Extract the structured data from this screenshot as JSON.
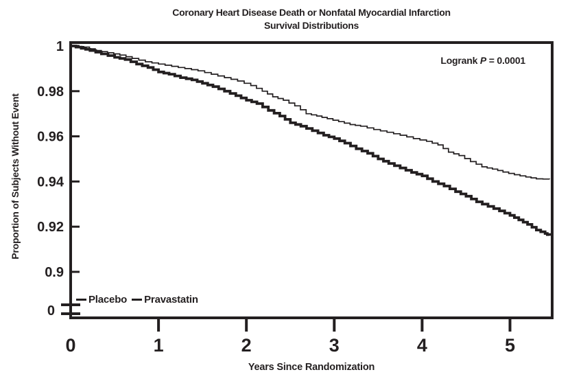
{
  "colors": {
    "ink": "#231f20",
    "background": "#ffffff"
  },
  "chart_data": {
    "type": "line",
    "subtype": "kaplan-meier-step-survival",
    "title": "Coronary Heart Disease Death or Nonfatal Myocardial Infarction Survival Distributions",
    "title_lines": [
      "Coronary Heart Disease Death or Nonfatal Myocardial Infarction",
      "Survival Distributions"
    ],
    "annotation": "Logrank P = 0.0001",
    "annotation_parts": {
      "prefix": "Logrank ",
      "p": "P",
      "rest": " = 0.0001"
    },
    "xlabel": "Years Since Randomization",
    "ylabel": "Proportion of Subjects Without Event",
    "x_ticks": [
      0,
      1,
      2,
      3,
      4,
      5
    ],
    "x_tick_labels": [
      "0",
      "1",
      "2",
      "3",
      "4",
      "5"
    ],
    "xlim": [
      0,
      5.48
    ],
    "y_ticks": [
      1,
      0.98,
      0.96,
      0.94,
      0.92,
      0.9
    ],
    "y_tick_labels": [
      "1",
      "0.98",
      "0.96",
      "0.94",
      "0.92",
      "0.9"
    ],
    "y_break_label": "0",
    "y_axis_break": true,
    "ylim_displayed": [
      0.9,
      1.0
    ],
    "grid": false,
    "legend": [
      "Placebo",
      "Pravastatin"
    ],
    "legend_position": "inside-bottom-left",
    "series": [
      {
        "name": "Pravastatin",
        "weight": "thin",
        "points": [
          [
            0,
            1
          ],
          [
            0.15,
            0.9995
          ],
          [
            0.28,
            0.998
          ],
          [
            0.42,
            0.997
          ],
          [
            0.56,
            0.996
          ],
          [
            0.7,
            0.9945
          ],
          [
            0.85,
            0.993
          ],
          [
            1.0,
            0.992
          ],
          [
            1.15,
            0.991
          ],
          [
            1.3,
            0.99
          ],
          [
            1.45,
            0.989
          ],
          [
            1.6,
            0.9875
          ],
          [
            1.75,
            0.986
          ],
          [
            1.9,
            0.9845
          ],
          [
            2.05,
            0.9825
          ],
          [
            2.18,
            0.98
          ],
          [
            2.3,
            0.9775
          ],
          [
            2.42,
            0.976
          ],
          [
            2.55,
            0.9735
          ],
          [
            2.68,
            0.97
          ],
          [
            2.8,
            0.969
          ],
          [
            2.92,
            0.9678
          ],
          [
            3.05,
            0.9665
          ],
          [
            3.18,
            0.9652
          ],
          [
            3.3,
            0.9645
          ],
          [
            3.45,
            0.963
          ],
          [
            3.6,
            0.9618
          ],
          [
            3.75,
            0.9605
          ],
          [
            3.9,
            0.959
          ],
          [
            4.05,
            0.9578
          ],
          [
            4.18,
            0.9562
          ],
          [
            4.3,
            0.953
          ],
          [
            4.42,
            0.9515
          ],
          [
            4.55,
            0.9488
          ],
          [
            4.68,
            0.9465
          ],
          [
            4.8,
            0.9455
          ],
          [
            4.92,
            0.9442
          ],
          [
            5.05,
            0.943
          ],
          [
            5.18,
            0.942
          ],
          [
            5.3,
            0.9412
          ],
          [
            5.45,
            0.941
          ]
        ]
      },
      {
        "name": "Placebo",
        "weight": "thick",
        "points": [
          [
            0,
            1
          ],
          [
            0.12,
            0.999
          ],
          [
            0.22,
            0.998
          ],
          [
            0.35,
            0.9965
          ],
          [
            0.5,
            0.995
          ],
          [
            0.62,
            0.994
          ],
          [
            0.75,
            0.992
          ],
          [
            0.88,
            0.9905
          ],
          [
            1.0,
            0.9885
          ],
          [
            1.12,
            0.9875
          ],
          [
            1.25,
            0.986
          ],
          [
            1.38,
            0.985
          ],
          [
            1.5,
            0.9835
          ],
          [
            1.62,
            0.982
          ],
          [
            1.75,
            0.98
          ],
          [
            1.88,
            0.978
          ],
          [
            2.0,
            0.976
          ],
          [
            2.12,
            0.9745
          ],
          [
            2.25,
            0.9715
          ],
          [
            2.38,
            0.969
          ],
          [
            2.5,
            0.966
          ],
          [
            2.62,
            0.9645
          ],
          [
            2.75,
            0.9625
          ],
          [
            2.88,
            0.9605
          ],
          [
            3.0,
            0.959
          ],
          [
            3.12,
            0.957
          ],
          [
            3.25,
            0.9545
          ],
          [
            3.38,
            0.9525
          ],
          [
            3.5,
            0.95
          ],
          [
            3.62,
            0.948
          ],
          [
            3.75,
            0.946
          ],
          [
            3.88,
            0.944
          ],
          [
            4.0,
            0.9425
          ],
          [
            4.12,
            0.94
          ],
          [
            4.25,
            0.938
          ],
          [
            4.38,
            0.9355
          ],
          [
            4.5,
            0.9335
          ],
          [
            4.62,
            0.931
          ],
          [
            4.75,
            0.929
          ],
          [
            4.88,
            0.927
          ],
          [
            5.0,
            0.925
          ],
          [
            5.1,
            0.923
          ],
          [
            5.2,
            0.921
          ],
          [
            5.3,
            0.9185
          ],
          [
            5.4,
            0.917
          ],
          [
            5.45,
            0.916
          ]
        ]
      }
    ]
  }
}
